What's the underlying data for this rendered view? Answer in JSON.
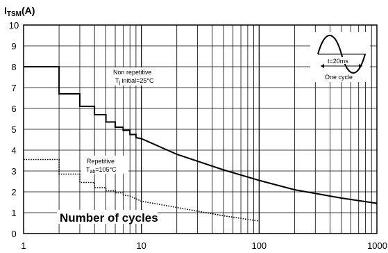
{
  "chart_data": {
    "type": "line",
    "ylabel_main": "I",
    "ylabel_sub": "TSM",
    "ylabel_unit": "(A)",
    "xlabel": "Number of cycles",
    "x_scale": "log",
    "xlim": [
      1,
      1000
    ],
    "ylim": [
      0,
      10
    ],
    "x_ticks": [
      "1",
      "10",
      "100",
      "1000"
    ],
    "y_ticks": [
      "0",
      "1",
      "2",
      "3",
      "4",
      "5",
      "6",
      "7",
      "8",
      "9",
      "10"
    ],
    "grid": true,
    "series": [
      {
        "name": "Non repetitive",
        "style": "solid",
        "points": [
          [
            1,
            8.0
          ],
          [
            2,
            8.0
          ],
          [
            2,
            6.7
          ],
          [
            3,
            6.7
          ],
          [
            3,
            6.1
          ],
          [
            4,
            6.1
          ],
          [
            4,
            5.7
          ],
          [
            5,
            5.7
          ],
          [
            5,
            5.35
          ],
          [
            6,
            5.35
          ],
          [
            6,
            5.1
          ],
          [
            7,
            5.1
          ],
          [
            7,
            4.95
          ],
          [
            8,
            4.95
          ],
          [
            8,
            4.75
          ],
          [
            9,
            4.75
          ],
          [
            9,
            4.6
          ],
          [
            10,
            4.55
          ],
          [
            20,
            3.8
          ],
          [
            50,
            3.05
          ],
          [
            100,
            2.55
          ],
          [
            200,
            2.1
          ],
          [
            500,
            1.7
          ],
          [
            1000,
            1.45
          ]
        ]
      },
      {
        "name": "Repetitive",
        "style": "dotted",
        "points": [
          [
            1,
            3.55
          ],
          [
            2,
            3.55
          ],
          [
            2,
            2.85
          ],
          [
            3,
            2.85
          ],
          [
            3,
            2.45
          ],
          [
            4,
            2.45
          ],
          [
            4,
            2.2
          ],
          [
            5,
            2.2
          ],
          [
            5,
            2.05
          ],
          [
            6,
            2.05
          ],
          [
            6,
            1.95
          ],
          [
            7,
            1.95
          ],
          [
            7,
            1.85
          ],
          [
            8,
            1.8
          ],
          [
            10,
            1.55
          ],
          [
            20,
            1.25
          ],
          [
            50,
            0.85
          ],
          [
            100,
            0.6
          ]
        ]
      }
    ],
    "annotations": {
      "non_rep_line1": "Non repetitive",
      "non_rep_line2_a": "T",
      "non_rep_line2_sub": "j",
      "non_rep_line2_b": " initial=25°C",
      "rep_line1": "Repetitive",
      "rep_line2_a": "T",
      "rep_line2_sub": "ab",
      "rep_line2_b": "=105°C",
      "inset_time": "t=20ms",
      "inset_cycle": "One cycle"
    }
  }
}
